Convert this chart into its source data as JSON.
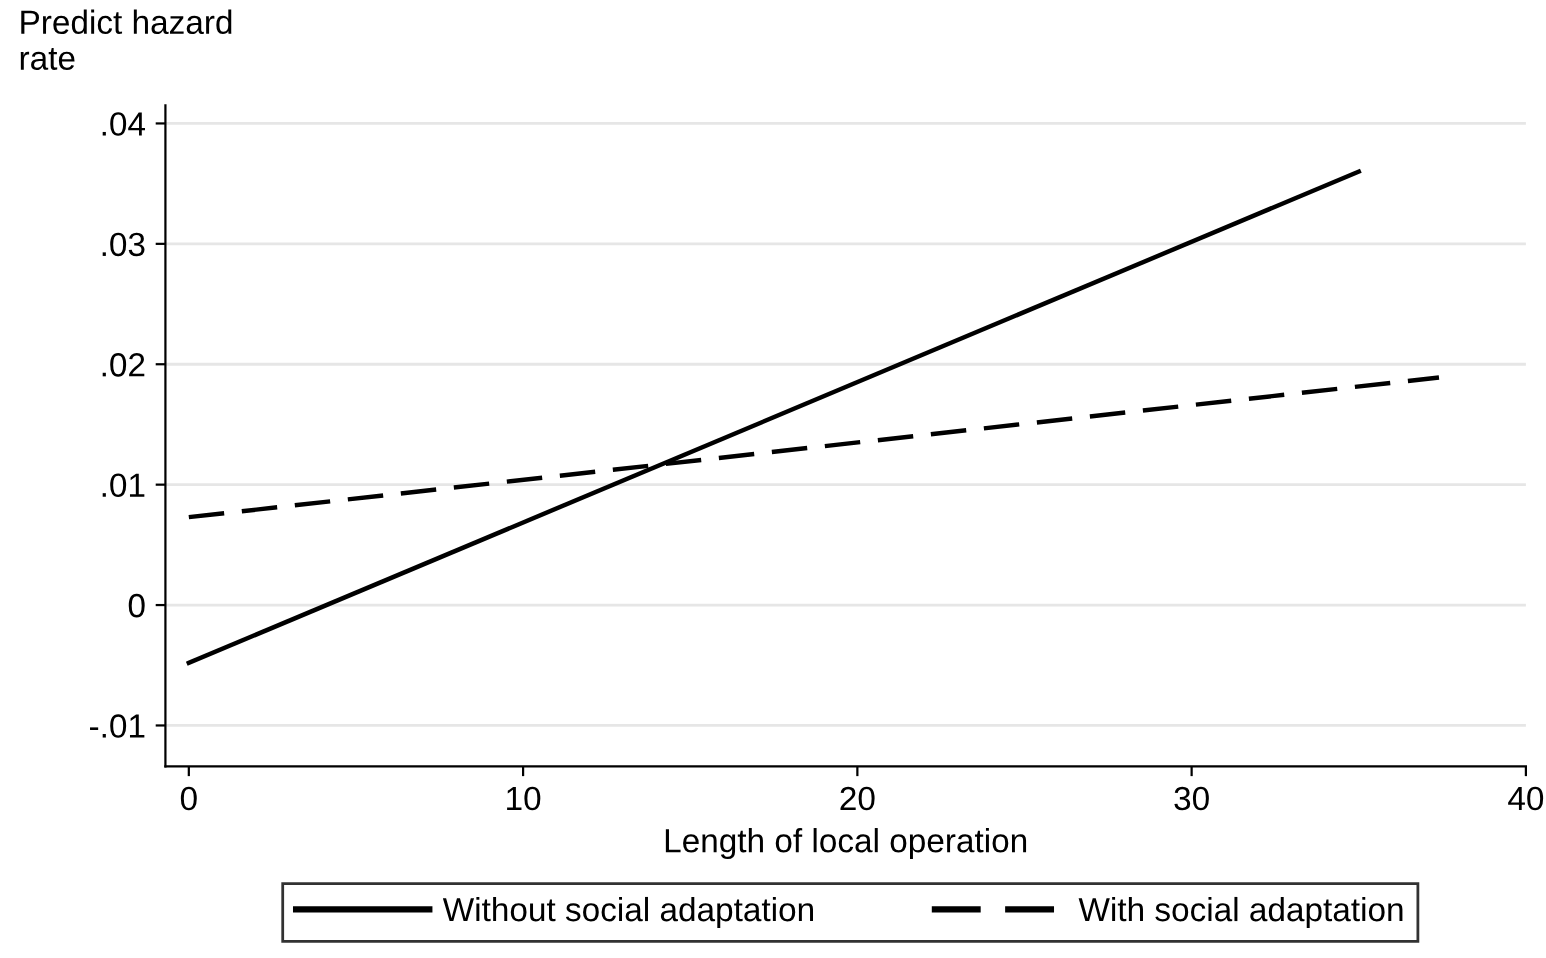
{
  "chart_data": {
    "type": "line",
    "ylabel": "Predict hazard rate",
    "xlabel": "Length of local operation",
    "series": [
      {
        "name": "Without social adaptation",
        "color": "#000000",
        "line_style": "solid",
        "x": [
          0,
          35
        ],
        "values": [
          -0.0048,
          0.036
        ]
      },
      {
        "name": "With social adaptation",
        "color": "#000000",
        "line_style": "dashed",
        "x": [
          0,
          37.4
        ],
        "values": [
          0.0073,
          0.0189
        ]
      }
    ],
    "xlim": [
      -0.7,
      40
    ],
    "ylim": [
      -0.0134,
      0.0415
    ],
    "xticks": [
      0,
      10,
      20,
      30,
      40
    ],
    "yticks": [
      {
        "value": -0.01,
        "label": "-.01"
      },
      0,
      {
        "value": 0.01,
        "label": ".01"
      },
      {
        "value": 0.02,
        "label": ".02"
      },
      {
        "value": 0.03,
        "label": ".03"
      },
      {
        "value": 0.04,
        "label": ".04"
      }
    ],
    "grid": "y",
    "legend": "bottom"
  }
}
